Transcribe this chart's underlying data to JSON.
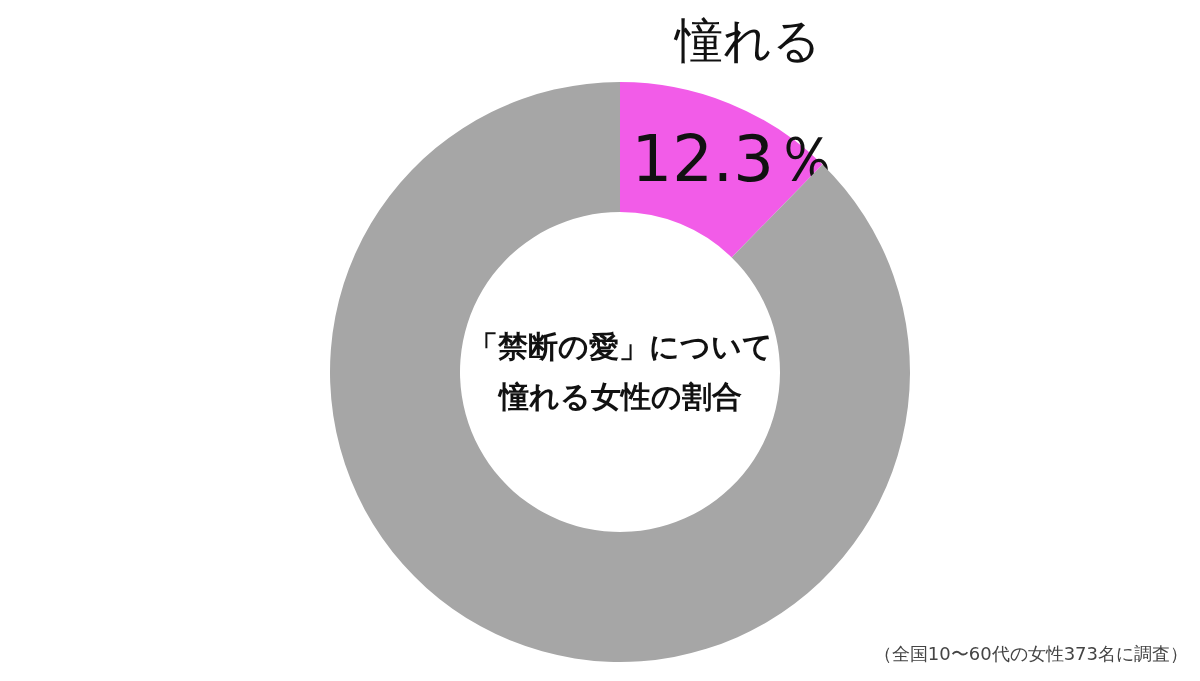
{
  "chart_data": {
    "type": "donut",
    "title": "「禁断の愛」について",
    "subtitle": "憧れる女性の割合",
    "categories": [
      "憧れる",
      null
    ],
    "values": [
      12.3,
      87.7
    ],
    "colors": [
      "#f25ce8",
      "#a6a6a6"
    ],
    "value_labels": [
      "12.3％",
      null
    ],
    "annotations": [
      "（全国10〜60代の女性373名に調査）"
    ]
  }
}
